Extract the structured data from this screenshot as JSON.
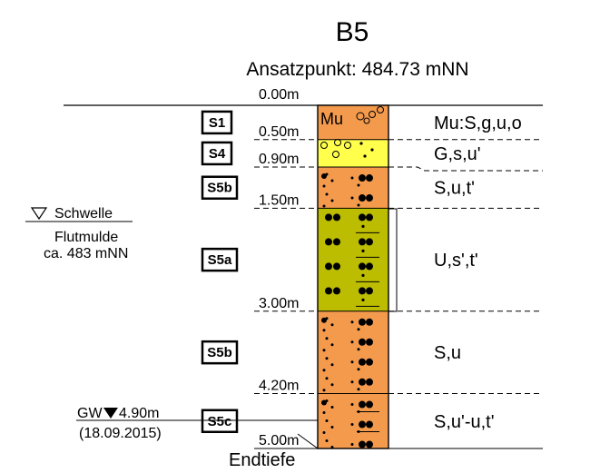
{
  "title": "B5",
  "subtitle": "Ansatzpunkt: 484.73 mNN",
  "colors": {
    "mutterboden": "#f39a4d",
    "gravel": "#ffff4c",
    "sand": "#f39a4d",
    "silt": "#bcbc00",
    "line": "#000000"
  },
  "depths": [
    {
      "value": 0.0,
      "label": "0.00m"
    },
    {
      "value": 0.5,
      "label": "0.50m"
    },
    {
      "value": 0.9,
      "label": "0.90m"
    },
    {
      "value": 1.5,
      "label": "1.50m"
    },
    {
      "value": 3.0,
      "label": "3.00m"
    },
    {
      "value": 4.2,
      "label": "4.20m"
    },
    {
      "value": 5.0,
      "label": "5.00m"
    }
  ],
  "end_label": "Endtiefe",
  "layers": [
    {
      "top": 0.0,
      "bottom": 0.5,
      "color": "mutterboden",
      "column_label": "Mu",
      "description": "Mu:S,g,u,o",
      "pattern": "mu"
    },
    {
      "top": 0.5,
      "bottom": 0.9,
      "color": "gravel",
      "column_label": "",
      "description": "G,s,u'",
      "pattern": "gravel"
    },
    {
      "top": 0.9,
      "bottom": 1.5,
      "color": "sand",
      "column_label": "",
      "description": "S,u,t'",
      "pattern": "sand"
    },
    {
      "top": 1.5,
      "bottom": 3.0,
      "color": "silt",
      "column_label": "",
      "description": "U,s',t'",
      "pattern": "silt"
    },
    {
      "top": 3.0,
      "bottom": 4.2,
      "color": "sand",
      "column_label": "",
      "description": "S,u",
      "pattern": "sand"
    },
    {
      "top": 4.2,
      "bottom": 5.0,
      "color": "sand",
      "column_label": "",
      "description": "S,u'-u,t'",
      "pattern": "sandclay"
    }
  ],
  "samples": [
    {
      "label": "S1",
      "depth": 0.25
    },
    {
      "label": "S4",
      "depth": 0.7
    },
    {
      "label": "S5b",
      "depth": 1.2
    },
    {
      "label": "S5a",
      "depth": 2.25
    },
    {
      "label": "S5b",
      "depth": 3.6
    },
    {
      "label": "S5c",
      "depth": 4.6
    }
  ],
  "schwelle": {
    "label": "Schwelle",
    "line1": "Flutmulde",
    "line2": "ca. 483 mNN"
  },
  "groundwater": {
    "prefix": "GW",
    "depth_label": "4.90m",
    "date": "(18.09.2015)"
  }
}
